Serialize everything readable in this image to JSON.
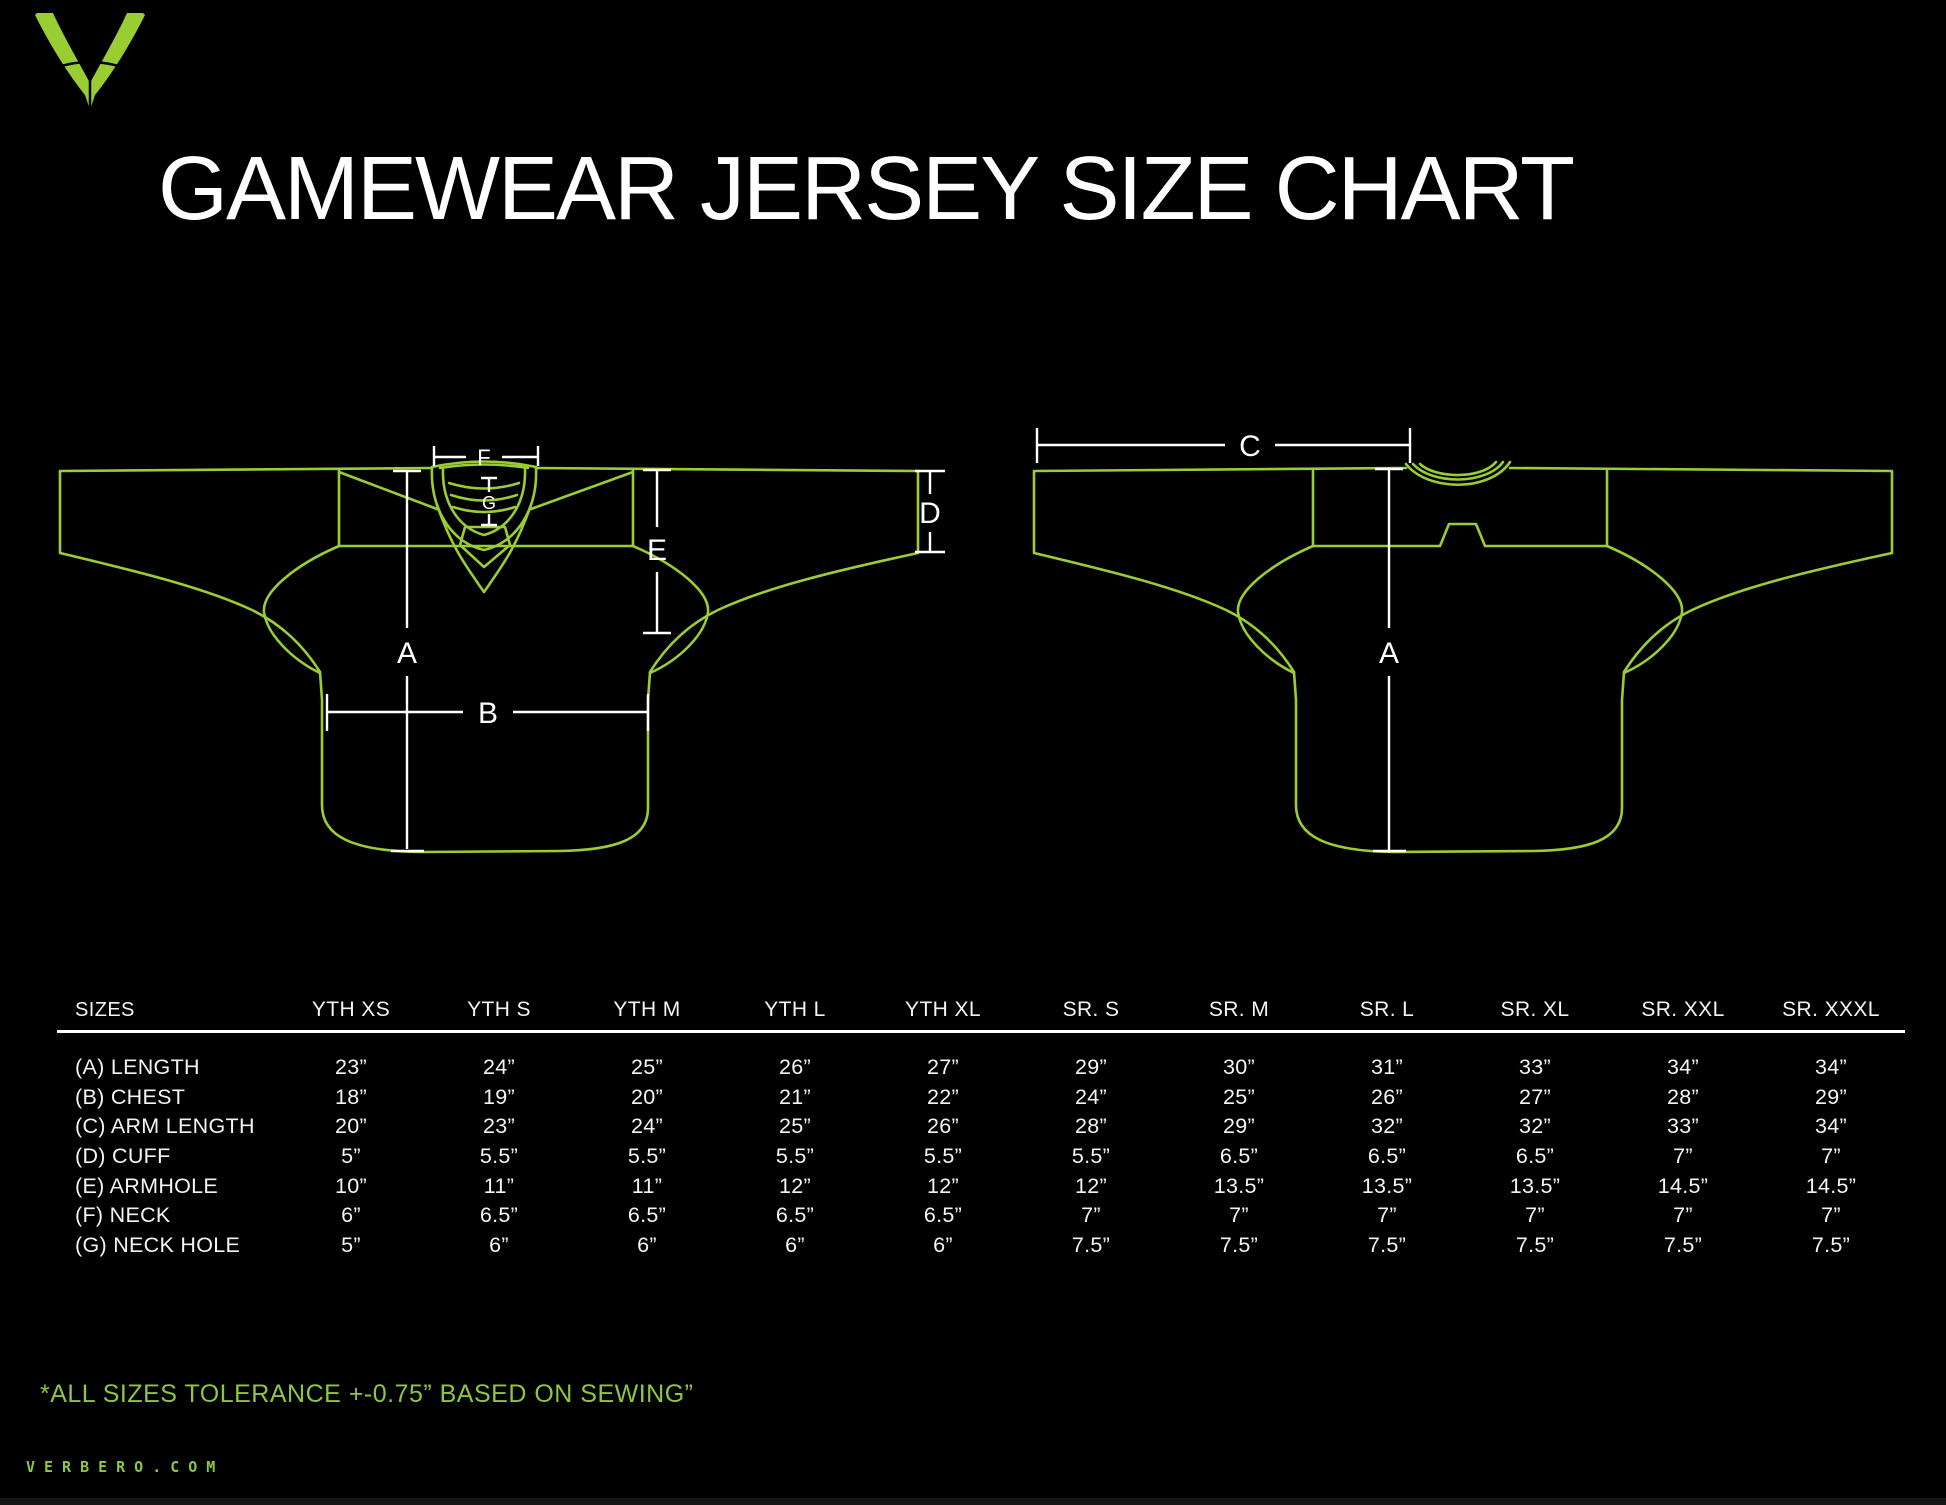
{
  "colors": {
    "background": "#000000",
    "brand_green": "#8dc63f",
    "line_green": "#9acd32",
    "text_white": "#ffffff"
  },
  "logo": {
    "icon": "verbero-v-logo"
  },
  "title": "GAMEWEAR JERSEY SIZE CHART",
  "diagram": {
    "front": {
      "length_label": "A",
      "chest_label": "B",
      "cuff_label": "D",
      "armhole_label": "E",
      "neck_label": "F",
      "neck_hole_label": "G"
    },
    "back": {
      "arm_length_label": "C",
      "length_label": "A"
    }
  },
  "table": {
    "header": [
      "SIZES",
      "YTH XS",
      "YTH S",
      "YTH M",
      "YTH L",
      "YTH XL",
      "SR. S",
      "SR. M",
      "SR. L",
      "SR. XL",
      "SR. XXL",
      "SR. XXXL"
    ],
    "rows": [
      {
        "label": "(A) LENGTH",
        "values": [
          "23”",
          "24”",
          "25”",
          "26”",
          "27”",
          "29”",
          "30”",
          "31”",
          "33”",
          "34”",
          "34”"
        ]
      },
      {
        "label": "(B) CHEST",
        "values": [
          "18”",
          "19”",
          "20”",
          "21”",
          "22”",
          "24”",
          "25”",
          "26”",
          "27”",
          "28”",
          "29”"
        ]
      },
      {
        "label": "(C) ARM LENGTH",
        "values": [
          "20”",
          "23”",
          "24”",
          "25”",
          "26”",
          "28”",
          "29”",
          "32”",
          "32”",
          "33”",
          "34”"
        ]
      },
      {
        "label": "(D) CUFF",
        "values": [
          "5”",
          "5.5”",
          "5.5”",
          "5.5”",
          "5.5”",
          "5.5”",
          "6.5”",
          "6.5”",
          "6.5”",
          "7”",
          "7”"
        ]
      },
      {
        "label": "(E) ARMHOLE",
        "values": [
          "10”",
          "11”",
          "11”",
          "12”",
          "12”",
          "12”",
          "13.5”",
          "13.5”",
          "13.5”",
          "14.5”",
          "14.5”"
        ]
      },
      {
        "label": "(F) NECK",
        "values": [
          "6”",
          "6.5”",
          "6.5”",
          "6.5”",
          "6.5”",
          "7”",
          "7”",
          "7”",
          "7”",
          "7”",
          "7”"
        ]
      },
      {
        "label": "(G) NECK HOLE",
        "values": [
          "5”",
          "6”",
          "6”",
          "6”",
          "6”",
          "7.5”",
          "7.5”",
          "7.5”",
          "7.5”",
          "7.5”",
          "7.5”"
        ]
      }
    ]
  },
  "footnote": "*ALL SIZES TOLERANCE +-0.75” BASED ON SEWING”",
  "website": "VERBERO.COM"
}
